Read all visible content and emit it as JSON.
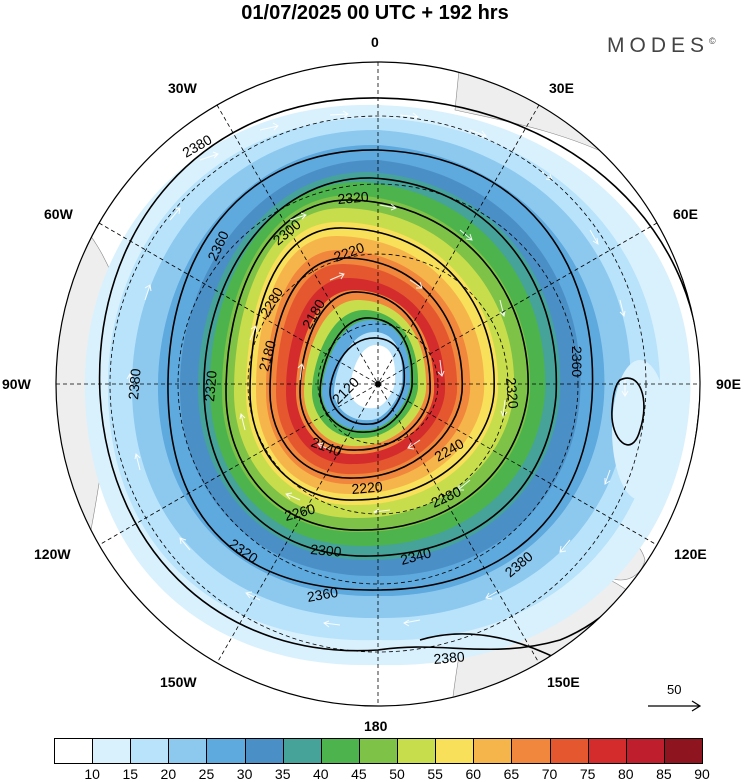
{
  "title": "01/07/2025  00 UTC  + 192 hrs",
  "brand": {
    "name": "MODES",
    "mark": "©"
  },
  "map": {
    "projection": "south polar stereographic",
    "longitude_labels": {
      "top": "0",
      "top_left": "30W",
      "top_right": "30E",
      "upper_left": "60W",
      "upper_right": "60E",
      "left": "90W",
      "right": "90E",
      "lower_left": "120W",
      "lower_right": "120E",
      "bottom_left": "150W",
      "bottom_right": "150E",
      "bottom": "180"
    },
    "contour_labels": [
      "2120",
      "2140",
      "2180",
      "2180",
      "2220",
      "2220",
      "2240",
      "2260",
      "2280",
      "2280",
      "2300",
      "2300",
      "2320",
      "2320",
      "2320",
      "2320",
      "2340",
      "2360",
      "2360",
      "2360",
      "2380",
      "2380",
      "2380",
      "2380"
    ],
    "reference_vector": "50"
  },
  "colorbar": {
    "colors": [
      "#ffffff",
      "#d9f1fd",
      "#b8e3fb",
      "#8dc9ef",
      "#5ea9dd",
      "#4b8fc7",
      "#45a39a",
      "#4db34d",
      "#7ec247",
      "#c8dd4b",
      "#f8e05a",
      "#f6b54b",
      "#f1873c",
      "#e5582f",
      "#d42c2c",
      "#bf1f2c",
      "#8e1420"
    ],
    "tick_labels": [
      "10",
      "15",
      "20",
      "25",
      "30",
      "35",
      "40",
      "45",
      "50",
      "55",
      "60",
      "65",
      "70",
      "75",
      "80",
      "85",
      "90"
    ]
  }
}
